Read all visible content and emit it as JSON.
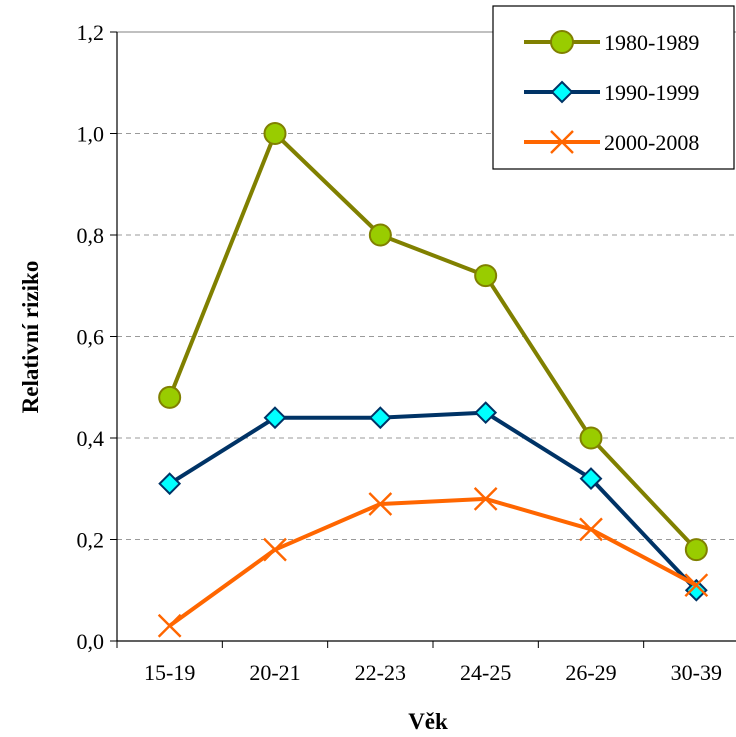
{
  "chart_data": {
    "type": "line",
    "title": "",
    "xlabel": "Věk",
    "ylabel": "Relativní riziko",
    "categories": [
      "15-19",
      "20-21",
      "22-23",
      "24-25",
      "26-29",
      "30-39"
    ],
    "ylim": [
      0,
      1.2
    ],
    "yticks": [
      "0,0",
      "0,2",
      "0,4",
      "0,6",
      "0,8",
      "1,0",
      "1,2"
    ],
    "ytick_values": [
      0,
      0.2,
      0.4,
      0.6,
      0.8,
      1.0,
      1.2
    ],
    "grid": true,
    "legend_position": "top-right",
    "series": [
      {
        "name": "1980-1989",
        "values": [
          0.48,
          1.0,
          0.8,
          0.72,
          0.4,
          0.18
        ],
        "color": "#808000",
        "marker": "circle",
        "marker_fill": "#99CC00"
      },
      {
        "name": "1990-1999",
        "values": [
          0.31,
          0.44,
          0.44,
          0.45,
          0.32,
          0.1
        ],
        "color": "#003366",
        "marker": "diamond",
        "marker_fill": "#00FFFF"
      },
      {
        "name": "2000-2008",
        "values": [
          0.03,
          0.18,
          0.27,
          0.28,
          0.22,
          0.11
        ],
        "color": "#FF6600",
        "marker": "x",
        "marker_fill": "#FF6600"
      }
    ]
  }
}
